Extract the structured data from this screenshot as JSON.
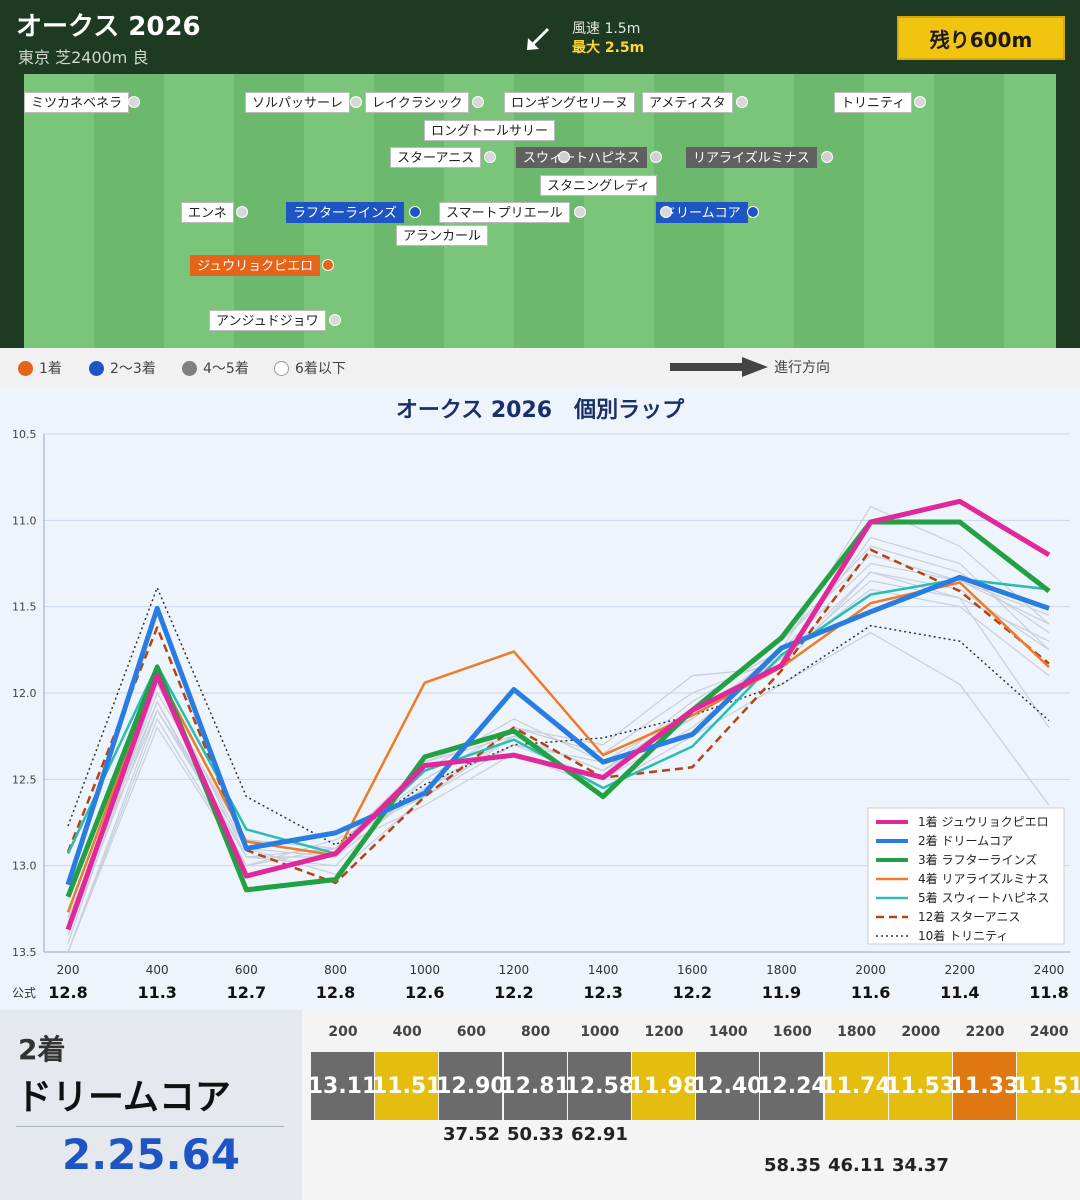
{
  "header": {
    "title": "オークス 2026",
    "subtitle": "東京 芝2400m 良",
    "wind_speed": "風速 1.5m",
    "wind_max": "最大 2.5m",
    "remaining": "残り600m"
  },
  "field_horses": [
    {
      "name": "ミツカネベネラ",
      "cls": "p6"
    },
    {
      "name": "ソルパッサーレ",
      "cls": "p6"
    },
    {
      "name": "レイクラシック",
      "cls": "p6"
    },
    {
      "name": "ロンギングセリーヌ",
      "cls": "p6"
    },
    {
      "name": "アメティスタ",
      "cls": "p6"
    },
    {
      "name": "トリニティ",
      "cls": "p6"
    },
    {
      "name": "ロングトールサリー",
      "cls": "p6"
    },
    {
      "name": "スターアニス",
      "cls": "p6"
    },
    {
      "name": "スウィートハピネス",
      "cls": "p4"
    },
    {
      "name": "リアライズルミナス",
      "cls": "p4"
    },
    {
      "name": "スタニングレディ",
      "cls": "p6"
    },
    {
      "name": "エンネ",
      "cls": "p6"
    },
    {
      "name": "ラフターラインズ",
      "cls": "p2"
    },
    {
      "name": "スマートプリエール",
      "cls": "p6"
    },
    {
      "name": "ドリームコア",
      "cls": "p2"
    },
    {
      "name": "アランカール",
      "cls": "p6"
    },
    {
      "name": "ジュウリョクピエロ",
      "cls": "p1"
    },
    {
      "name": "アンジュドジョワ",
      "cls": "p6"
    }
  ],
  "legend": {
    "first": "1着",
    "second_third": "2〜3着",
    "fourth_fifth": "4〜5着",
    "sixth_below": "6着以下",
    "direction": "進行方向"
  },
  "colors": {
    "first": "#e6641a",
    "second_third": "#1d56c4",
    "fourth_fifth": "#808080"
  },
  "chart_data": {
    "type": "line",
    "title": "オークス 2026　個別ラップ",
    "x": [
      200,
      400,
      600,
      800,
      1000,
      1200,
      1400,
      1600,
      1800,
      2000,
      2200,
      2400
    ],
    "ylim": [
      13.5,
      10.5
    ],
    "yticks": [
      10.5,
      11.0,
      11.5,
      12.0,
      12.5,
      13.0,
      13.5
    ],
    "ytick_labels": [
      "10.5",
      "11.0",
      "11.5",
      "12.0",
      "12.5",
      "13.0",
      "13.5"
    ],
    "official_label": "公式",
    "official": [
      "12.8",
      "11.3",
      "12.7",
      "12.8",
      "12.6",
      "12.2",
      "12.3",
      "12.2",
      "11.9",
      "11.6",
      "11.4",
      "11.8"
    ],
    "series": [
      {
        "name": "1着 ジュウリョクピエロ",
        "color": "#e0289a",
        "width": 5,
        "dash": "",
        "values": [
          13.37,
          11.9,
          13.06,
          12.93,
          12.42,
          12.36,
          12.49,
          12.1,
          11.84,
          11.01,
          10.89,
          11.2
        ]
      },
      {
        "name": "2着 ドリームコア",
        "color": "#2a7de0",
        "width": 5,
        "dash": "",
        "values": [
          13.11,
          11.51,
          12.9,
          12.81,
          12.58,
          11.98,
          12.4,
          12.24,
          11.74,
          11.53,
          11.33,
          11.51
        ]
      },
      {
        "name": "3着 ラフターラインズ",
        "color": "#21a044",
        "width": 5,
        "dash": "",
        "values": [
          13.18,
          11.85,
          13.14,
          13.08,
          12.37,
          12.22,
          12.6,
          12.1,
          11.68,
          11.01,
          11.01,
          11.41
        ]
      },
      {
        "name": "4着 リアライズルミナス",
        "color": "#ef7a2a",
        "width": 2.5,
        "dash": "",
        "values": [
          13.27,
          11.88,
          12.86,
          12.94,
          11.94,
          11.76,
          12.36,
          12.13,
          11.85,
          11.48,
          11.36,
          11.85
        ]
      },
      {
        "name": "5着 スウィートハピネス",
        "color": "#2bbcb4",
        "width": 2.5,
        "dash": "",
        "values": [
          12.93,
          11.84,
          12.79,
          12.93,
          12.45,
          12.27,
          12.55,
          12.31,
          11.78,
          11.43,
          11.34,
          11.4
        ]
      },
      {
        "name": "12着 スターアニス",
        "color": "#b8420f",
        "width": 2.5,
        "dash": "8,5",
        "values": [
          12.92,
          11.62,
          12.91,
          13.1,
          12.6,
          12.2,
          12.49,
          12.43,
          11.87,
          11.17,
          11.41,
          11.83
        ]
      },
      {
        "name": "10着 トリニティ",
        "color": "#333333",
        "width": 1.5,
        "dash": "2,3",
        "values": [
          12.77,
          11.39,
          12.6,
          12.88,
          12.53,
          12.3,
          12.26,
          12.13,
          11.95,
          11.61,
          11.7,
          12.16
        ]
      }
    ],
    "background_series": [
      [
        13.3,
        12.1,
        12.95,
        12.9,
        12.55,
        12.25,
        12.45,
        12.15,
        11.75,
        11.25,
        11.35,
        11.55
      ],
      [
        13.45,
        11.95,
        12.9,
        12.95,
        12.4,
        12.2,
        12.35,
        12.0,
        11.8,
        11.1,
        11.25,
        11.75
      ],
      [
        13.5,
        12.15,
        13.0,
        12.85,
        12.6,
        12.3,
        12.5,
        12.2,
        11.8,
        11.4,
        11.5,
        11.9
      ],
      [
        13.4,
        11.9,
        12.85,
        12.95,
        12.45,
        12.15,
        12.4,
        12.1,
        11.7,
        11.2,
        11.35,
        11.6
      ],
      [
        13.3,
        12.05,
        12.95,
        13.0,
        12.5,
        12.2,
        12.3,
        11.9,
        11.85,
        11.3,
        11.45,
        11.7
      ],
      [
        13.5,
        12.2,
        13.0,
        12.9,
        12.65,
        12.35,
        12.55,
        12.25,
        11.95,
        11.65,
        11.95,
        12.65
      ],
      [
        13.35,
        12.0,
        12.85,
        12.9,
        12.4,
        12.25,
        12.45,
        12.05,
        11.75,
        10.92,
        11.15,
        11.6
      ],
      [
        13.2,
        11.9,
        12.95,
        12.95,
        12.55,
        12.3,
        12.4,
        12.1,
        11.8,
        11.3,
        11.4,
        11.75
      ],
      [
        13.4,
        12.05,
        13.0,
        12.9,
        12.5,
        12.2,
        12.35,
        12.15,
        11.8,
        11.35,
        11.45,
        12.2
      ],
      [
        13.5,
        12.1,
        12.9,
        13.05,
        12.6,
        12.25,
        12.45,
        12.1,
        11.7,
        11.15,
        11.3,
        11.65
      ]
    ]
  },
  "detail": {
    "place": "2着",
    "horse": "ドリームコア",
    "time": "2.25.64",
    "columns": [
      "200",
      "400",
      "600",
      "800",
      "1000",
      "1200",
      "1400",
      "1600",
      "1800",
      "2000",
      "2200",
      "2400"
    ],
    "laps": [
      "13.11",
      "11.51",
      "12.90",
      "12.81",
      "12.58",
      "11.98",
      "12.40",
      "12.24",
      "11.74",
      "11.53",
      "11.33",
      "11.51"
    ],
    "lap_colors": [
      "gray",
      "yellow",
      "gray",
      "gray",
      "gray",
      "yellow",
      "gray",
      "gray",
      "yellow",
      "yellow",
      "orange",
      "yellow"
    ],
    "cumulative_upper": [
      "37.52",
      "50.33",
      "62.91"
    ],
    "cumulative_lower": [
      "58.35",
      "46.11",
      "34.37"
    ]
  }
}
